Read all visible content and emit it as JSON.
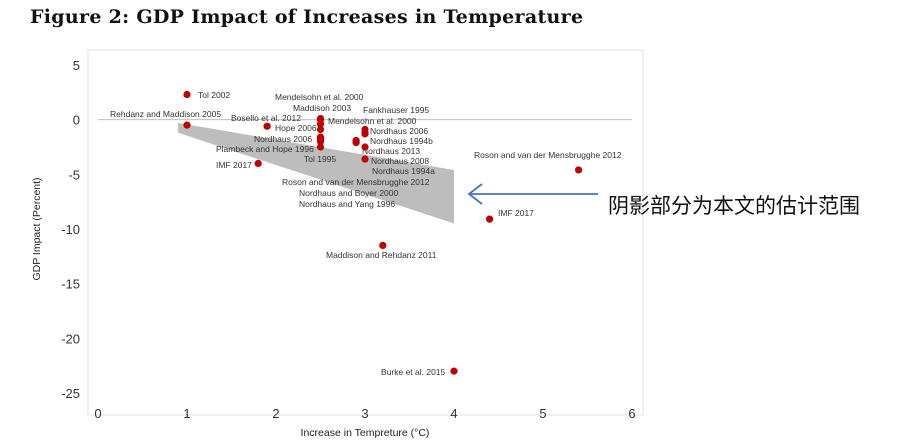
{
  "title": "Figure 2: GDP Impact of Increases in Temperature",
  "annotation": "阴影部分为本文的估计范围",
  "chart_data": {
    "type": "scatter",
    "title": "Figure 2: GDP Impact of Increases in Temperature",
    "xlabel": "Increase in Tempreture (°C)",
    "ylabel": "GDP Impact (Percent)",
    "xlim": [
      0,
      6
    ],
    "ylim": [
      -25,
      5
    ],
    "xticks": [
      "0",
      "1",
      "2",
      "3",
      "4",
      "5",
      "6"
    ],
    "yticks": [
      "5",
      "0",
      "-5",
      "-10",
      "-15",
      "-20",
      "-25"
    ],
    "grid": false,
    "zero_line": true,
    "point_color": "#c00000",
    "shade_color": "#bdbdbd",
    "arrow_color": "#4472c4",
    "shaded_range": [
      {
        "x": 0.9,
        "y_high": -0.3,
        "y_low": -1.2
      },
      {
        "x": 4.0,
        "y_high": -4.6,
        "y_low": -9.5
      }
    ],
    "points": [
      {
        "x": 1.0,
        "y": 2.3,
        "label": "Tol 2002"
      },
      {
        "x": 1.0,
        "y": -0.5,
        "label": "Rehdanz and Maddison 2005"
      },
      {
        "x": 2.5,
        "y": 0.1,
        "label": "Mendelsohn et al. 2000"
      },
      {
        "x": 2.5,
        "y": 0.0,
        "label": "Maddison 2003"
      },
      {
        "x": 2.5,
        "y": -0.9,
        "label": "Bosello et al. 2012"
      },
      {
        "x": 3.0,
        "y": -1.2,
        "label": "Fankhauser 1995"
      },
      {
        "x": 2.5,
        "y": -0.4,
        "label": "Mendelsohn et al. 2000"
      },
      {
        "x": 1.9,
        "y": -0.6,
        "label": "Hope 2006"
      },
      {
        "x": 3.0,
        "y": -0.9,
        "label": "Nordhaus 2006"
      },
      {
        "x": 3.0,
        "y": -1.3,
        "label": "Nordhaus 1994b"
      },
      {
        "x": 2.5,
        "y": -1.6,
        "label": "Nordhaus 2006"
      },
      {
        "x": 2.9,
        "y": -1.9,
        "label": "Nordhaus 2013"
      },
      {
        "x": 2.5,
        "y": -2.5,
        "label": "Plambeck and Hope 1996"
      },
      {
        "x": 3.0,
        "y": -2.5,
        "label": "Nordhaus 2008"
      },
      {
        "x": 2.5,
        "y": -2.0,
        "label": "Tol 1995"
      },
      {
        "x": 3.0,
        "y": -3.6,
        "label": "Nordhaus 1994a"
      },
      {
        "x": 1.8,
        "y": -4.0,
        "label": "IMF 2017"
      },
      {
        "x": 2.5,
        "y": -1.8,
        "label": "Roson and van der Mensbrugghe 2012"
      },
      {
        "x": 5.4,
        "y": -4.6,
        "label": "Roson and van der Mensbrugghe 2012"
      },
      {
        "x": 2.9,
        "y": -2.1,
        "label": "Nordhaus and Boyer 2000"
      },
      {
        "x": 2.5,
        "y": -1.7,
        "label": "Nordhaus and Yang 1996"
      },
      {
        "x": 4.4,
        "y": -9.1,
        "label": "IMF 2017"
      },
      {
        "x": 3.2,
        "y": -11.5,
        "label": "Maddison and Rehdanz 2011"
      },
      {
        "x": 4.0,
        "y": -23.0,
        "label": "Burke et al. 2015"
      }
    ]
  }
}
